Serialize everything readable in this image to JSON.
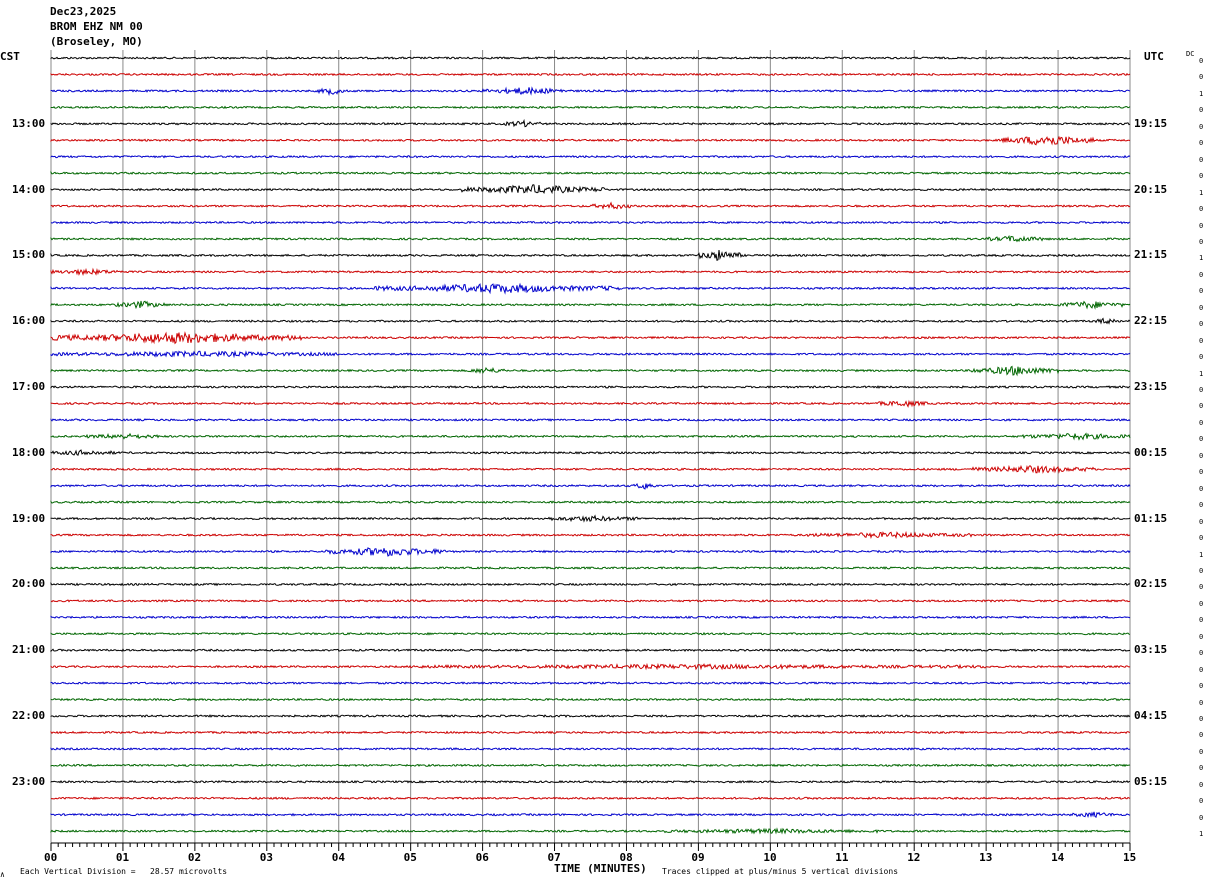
{
  "header": {
    "date": "Dec23,2025",
    "station": "BROM EHZ NM 00",
    "location": "(Broseley, MO)"
  },
  "left_tz": "CST",
  "right_tz": "UTC",
  "dc_header": "DC",
  "colors": [
    "#000000",
    "#cc0000",
    "#0000cc",
    "#006600"
  ],
  "footer": {
    "scale": "Each Vertical Division =   28.57 microvolts",
    "clip": "Traces clipped at plus/minus 5 vertical divisions",
    "corner": "∧"
  },
  "chart_data": {
    "type": "line",
    "title": "",
    "xlabel": "TIME (MINUTES)",
    "ylabel": "",
    "xlim": [
      0,
      15
    ],
    "x_ticks": [
      "00",
      "01",
      "02",
      "03",
      "04",
      "05",
      "06",
      "07",
      "08",
      "09",
      "10",
      "11",
      "12",
      "13",
      "14",
      "15"
    ],
    "left_hour_labels": [
      "13:00",
      "14:00",
      "15:00",
      "16:00",
      "17:00",
      "18:00",
      "19:00",
      "20:00",
      "21:00",
      "22:00",
      "23:00"
    ],
    "right_hour_labels": [
      "19:15",
      "20:15",
      "21:15",
      "22:15",
      "23:15",
      "00:15",
      "01:15",
      "02:15",
      "03:15",
      "04:15",
      "05:15"
    ],
    "dc_values": [
      0,
      0,
      1,
      0,
      0,
      0,
      0,
      0,
      1,
      0,
      0,
      0,
      1,
      0,
      0,
      0,
      0,
      0,
      0,
      1,
      0,
      0,
      0,
      0,
      0,
      0,
      0,
      0,
      0,
      0,
      1,
      0,
      0,
      0,
      0,
      0,
      0,
      0,
      0,
      0,
      0,
      0,
      0,
      0,
      0,
      0,
      0,
      1
    ],
    "trace_count": 48,
    "bursts": [
      {
        "trace": 2,
        "start_min": 3.7,
        "end_min": 4.1,
        "amp": 3
      },
      {
        "trace": 2,
        "start_min": 6.0,
        "end_min": 7.2,
        "amp": 3
      },
      {
        "trace": 4,
        "start_min": 6.3,
        "end_min": 6.8,
        "amp": 2.5
      },
      {
        "trace": 5,
        "start_min": 13.2,
        "end_min": 14.5,
        "amp": 5
      },
      {
        "trace": 8,
        "start_min": 5.7,
        "end_min": 7.7,
        "amp": 4
      },
      {
        "trace": 9,
        "start_min": 7.5,
        "end_min": 8.1,
        "amp": 2.5
      },
      {
        "trace": 11,
        "start_min": 13.0,
        "end_min": 13.8,
        "amp": 2.5
      },
      {
        "trace": 12,
        "start_min": 9.0,
        "end_min": 9.6,
        "amp": 5
      },
      {
        "trace": 13,
        "start_min": 0.0,
        "end_min": 1.0,
        "amp": 2
      },
      {
        "trace": 14,
        "start_min": 4.5,
        "end_min": 7.9,
        "amp": 4
      },
      {
        "trace": 15,
        "start_min": 0.9,
        "end_min": 1.6,
        "amp": 3
      },
      {
        "trace": 15,
        "start_min": 14.0,
        "end_min": 14.9,
        "amp": 3
      },
      {
        "trace": 16,
        "start_min": 14.5,
        "end_min": 14.8,
        "amp": 2.5
      },
      {
        "trace": 17,
        "start_min": 0.0,
        "end_min": 3.5,
        "amp": 5
      },
      {
        "trace": 18,
        "start_min": 0.0,
        "end_min": 4.0,
        "amp": 2
      },
      {
        "trace": 19,
        "start_min": 5.8,
        "end_min": 6.3,
        "amp": 2.5
      },
      {
        "trace": 19,
        "start_min": 12.8,
        "end_min": 14.0,
        "amp": 4
      },
      {
        "trace": 21,
        "start_min": 11.5,
        "end_min": 12.2,
        "amp": 2.5
      },
      {
        "trace": 23,
        "start_min": 0.5,
        "end_min": 1.5,
        "amp": 2
      },
      {
        "trace": 23,
        "start_min": 13.5,
        "end_min": 15.0,
        "amp": 2.5
      },
      {
        "trace": 24,
        "start_min": 0.0,
        "end_min": 0.9,
        "amp": 2
      },
      {
        "trace": 25,
        "start_min": 12.8,
        "end_min": 14.5,
        "amp": 3
      },
      {
        "trace": 26,
        "start_min": 8.1,
        "end_min": 8.4,
        "amp": 3
      },
      {
        "trace": 28,
        "start_min": 6.8,
        "end_min": 8.2,
        "amp": 2
      },
      {
        "trace": 29,
        "start_min": 10.5,
        "end_min": 12.8,
        "amp": 2
      },
      {
        "trace": 30,
        "start_min": 3.8,
        "end_min": 5.5,
        "amp": 4
      },
      {
        "trace": 37,
        "start_min": 5.0,
        "end_min": 13.0,
        "amp": 1.5
      },
      {
        "trace": 47,
        "start_min": 8.5,
        "end_min": 11.5,
        "amp": 1.5
      },
      {
        "trace": 46,
        "start_min": 14.2,
        "end_min": 14.8,
        "amp": 2
      }
    ]
  }
}
